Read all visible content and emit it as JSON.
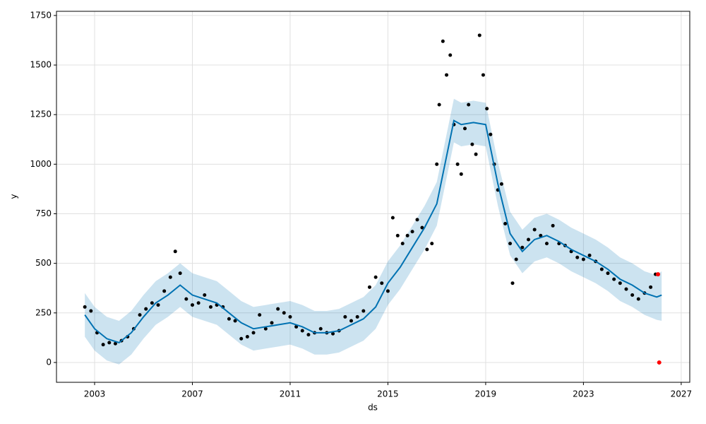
{
  "chart_data": {
    "type": "forecast",
    "xlabel": "ds",
    "ylabel": "y",
    "xlim": [
      2001.44,
      2027.35
    ],
    "ylim": [
      -100,
      1771
    ],
    "xticks": [
      2003,
      2007,
      2011,
      2015,
      2019,
      2023,
      2027
    ],
    "yticks": [
      0,
      250,
      500,
      750,
      1000,
      1250,
      1500,
      1750
    ],
    "grid": true,
    "observed": {
      "color": "#000000",
      "x": [
        2002.6,
        2002.85,
        2003.1,
        2003.35,
        2003.6,
        2003.85,
        2004.1,
        2004.35,
        2004.6,
        2004.85,
        2005.1,
        2005.35,
        2005.6,
        2005.85,
        2006.1,
        2006.3,
        2006.5,
        2006.75,
        2007.0,
        2007.25,
        2007.5,
        2007.75,
        2008.0,
        2008.25,
        2008.5,
        2008.75,
        2009.0,
        2009.25,
        2009.5,
        2009.75,
        2010.0,
        2010.25,
        2010.5,
        2010.75,
        2011.0,
        2011.25,
        2011.5,
        2011.75,
        2012.0,
        2012.25,
        2012.5,
        2012.75,
        2013.0,
        2013.25,
        2013.5,
        2013.75,
        2014.0,
        2014.25,
        2014.5,
        2014.75,
        2015.0,
        2015.2,
        2015.4,
        2015.6,
        2015.8,
        2016.0,
        2016.2,
        2016.4,
        2016.6,
        2016.8,
        2017.0,
        2017.1,
        2017.25,
        2017.4,
        2017.55,
        2017.7,
        2017.85,
        2018.0,
        2018.15,
        2018.3,
        2018.45,
        2018.6,
        2018.75,
        2018.9,
        2019.05,
        2019.2,
        2019.35,
        2019.5,
        2019.65,
        2019.8,
        2020.0,
        2020.1,
        2020.25,
        2020.5,
        2020.75,
        2021.0,
        2021.25,
        2021.5,
        2021.75,
        2022.0,
        2022.25,
        2022.5,
        2022.75,
        2023.0,
        2023.25,
        2023.5,
        2023.75,
        2024.0,
        2024.25,
        2024.5,
        2024.75,
        2025.0,
        2025.25,
        2025.5,
        2025.75,
        2025.95
      ],
      "values": [
        280,
        260,
        150,
        90,
        100,
        95,
        110,
        130,
        170,
        240,
        270,
        300,
        290,
        360,
        430,
        560,
        450,
        320,
        290,
        300,
        340,
        280,
        290,
        280,
        220,
        210,
        120,
        130,
        150,
        240,
        170,
        200,
        270,
        250,
        230,
        180,
        160,
        140,
        150,
        170,
        150,
        145,
        160,
        230,
        210,
        230,
        260,
        380,
        430,
        400,
        360,
        730,
        640,
        600,
        640,
        660,
        720,
        680,
        570,
        600,
        1000,
        1300,
        1620,
        1450,
        1550,
        1200,
        1000,
        950,
        1180,
        1300,
        1100,
        1050,
        1650,
        1450,
        1280,
        1150,
        1000,
        870,
        900,
        700,
        600,
        400,
        520,
        580,
        620,
        670,
        640,
        600,
        690,
        600,
        590,
        560,
        530,
        520,
        540,
        510,
        470,
        450,
        420,
        400,
        370,
        340,
        320,
        350,
        380,
        445
      ]
    },
    "forecast": {
      "color": "#0072B2",
      "x": [
        2002.6,
        2003,
        2003.5,
        2004,
        2004.5,
        2005,
        2005.5,
        2006,
        2006.5,
        2007,
        2007.5,
        2008,
        2008.5,
        2009,
        2009.5,
        2010,
        2010.5,
        2011,
        2011.5,
        2012,
        2012.5,
        2013,
        2013.5,
        2014,
        2014.5,
        2015,
        2015.5,
        2016,
        2016.5,
        2017,
        2017.5,
        2017.7,
        2018,
        2018.5,
        2019,
        2019.5,
        2020,
        2020.5,
        2021,
        2021.5,
        2022,
        2022.5,
        2023,
        2023.5,
        2024,
        2024.5,
        2025,
        2025.5,
        2026,
        2026.2
      ],
      "values": [
        240,
        170,
        120,
        100,
        150,
        230,
        300,
        340,
        390,
        340,
        320,
        300,
        250,
        200,
        170,
        180,
        190,
        200,
        180,
        150,
        150,
        160,
        190,
        220,
        280,
        400,
        480,
        580,
        680,
        800,
        1100,
        1220,
        1200,
        1210,
        1200,
        900,
        650,
        560,
        620,
        640,
        610,
        570,
        540,
        510,
        470,
        420,
        390,
        350,
        330,
        340
      ],
      "lower": [
        130,
        60,
        10,
        -10,
        40,
        120,
        190,
        230,
        280,
        230,
        210,
        190,
        140,
        90,
        60,
        70,
        80,
        90,
        70,
        40,
        40,
        50,
        80,
        110,
        170,
        290,
        370,
        470,
        570,
        690,
        990,
        1110,
        1090,
        1100,
        1090,
        790,
        540,
        450,
        510,
        530,
        500,
        460,
        430,
        400,
        360,
        310,
        280,
        240,
        215,
        210
      ],
      "upper": [
        350,
        280,
        230,
        210,
        260,
        340,
        410,
        450,
        500,
        450,
        430,
        410,
        360,
        310,
        280,
        290,
        300,
        310,
        290,
        260,
        260,
        270,
        300,
        330,
        390,
        510,
        590,
        690,
        790,
        910,
        1210,
        1330,
        1310,
        1320,
        1310,
        1010,
        760,
        670,
        730,
        750,
        720,
        680,
        650,
        620,
        580,
        530,
        500,
        460,
        440,
        460
      ]
    },
    "highlighted": {
      "color": "#ff0000",
      "x": [
        2026.05,
        2026.1
      ],
      "values": [
        445,
        0
      ]
    }
  }
}
